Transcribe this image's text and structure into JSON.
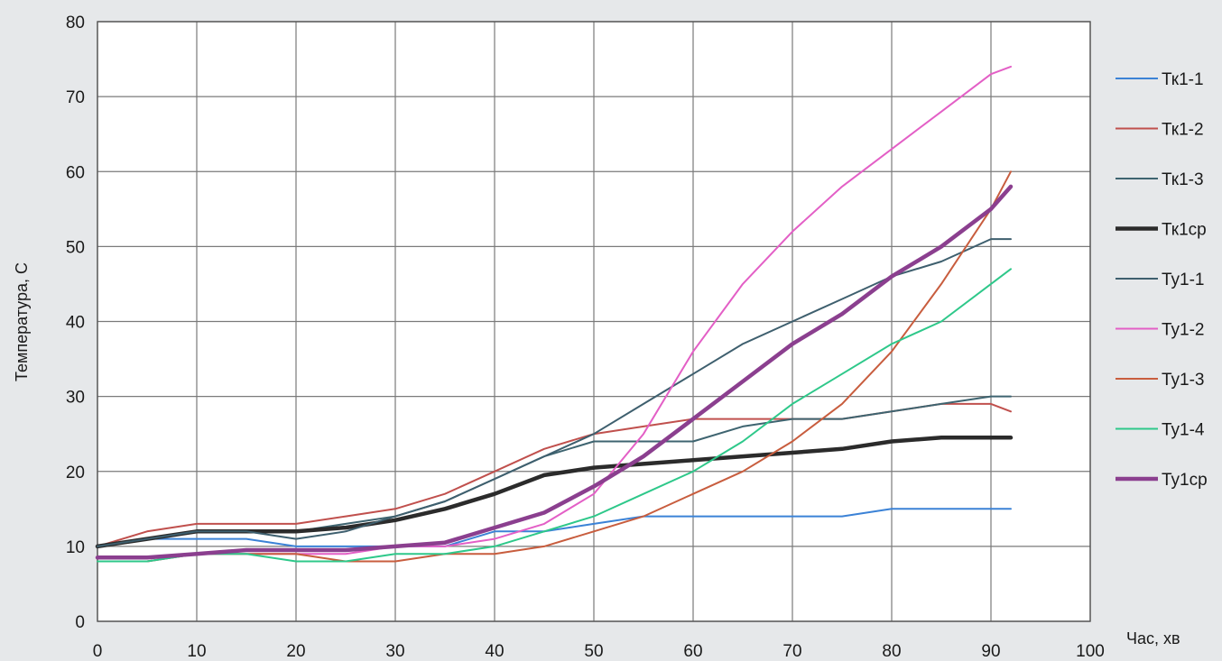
{
  "chart_data": {
    "type": "line",
    "title": "",
    "xlabel": "Час, хв",
    "ylabel": "Температура,  С",
    "xlim": [
      0,
      100
    ],
    "ylim": [
      0,
      80
    ],
    "x_ticks": [
      0,
      10,
      20,
      30,
      40,
      50,
      60,
      70,
      80,
      90,
      100
    ],
    "y_ticks": [
      0,
      10,
      20,
      30,
      40,
      50,
      60,
      70,
      80
    ],
    "grid": true,
    "legend_position": "right",
    "x": [
      0,
      5,
      10,
      15,
      20,
      25,
      30,
      35,
      40,
      45,
      50,
      55,
      60,
      65,
      70,
      75,
      80,
      85,
      90,
      92
    ],
    "series": [
      {
        "name": "Тк1-1",
        "color": "#3b82d6",
        "width": 2,
        "values": [
          10,
          11,
          11,
          11,
          10,
          10,
          10,
          10,
          12,
          12,
          13,
          14,
          14,
          14,
          14,
          14,
          15,
          15,
          15,
          15
        ]
      },
      {
        "name": "Тк1-2",
        "color": "#c0504d",
        "width": 2,
        "values": [
          10,
          12,
          13,
          13,
          13,
          14,
          15,
          17,
          20,
          23,
          25,
          26,
          27,
          27,
          27,
          27,
          28,
          29,
          29,
          28
        ]
      },
      {
        "name": "Тк1-3",
        "color": "#3e6470",
        "width": 2,
        "values": [
          10,
          11,
          12,
          12,
          12,
          13,
          14,
          16,
          19,
          22,
          24,
          24,
          24,
          26,
          27,
          27,
          28,
          29,
          30,
          30
        ]
      },
      {
        "name": "Тк1ср",
        "color": "#2b2b2b",
        "width": 4.5,
        "values": [
          10,
          11,
          12,
          12,
          12,
          12.5,
          13.5,
          15,
          17,
          19.5,
          20.5,
          21,
          21.5,
          22,
          22.5,
          23,
          24,
          24.5,
          24.5,
          24.5
        ]
      },
      {
        "name": "Ту1-1",
        "color": "#3e5f6e",
        "width": 2,
        "values": [
          10,
          11,
          12,
          12,
          11,
          12,
          14,
          16,
          19,
          22,
          25,
          29,
          33,
          37,
          40,
          43,
          46,
          48,
          51,
          51
        ]
      },
      {
        "name": "Ту1-2",
        "color": "#e35fc6",
        "width": 2,
        "values": [
          8,
          8,
          9,
          9,
          9,
          9,
          10,
          10,
          11,
          13,
          17,
          25,
          36,
          45,
          52,
          58,
          63,
          68,
          73,
          74
        ]
      },
      {
        "name": "Ту1-3",
        "color": "#c85d3e",
        "width": 2,
        "values": [
          8,
          8,
          9,
          9,
          9,
          8,
          8,
          9,
          9,
          10,
          12,
          14,
          17,
          20,
          24,
          29,
          36,
          45,
          55,
          60
        ]
      },
      {
        "name": "Ту1-4",
        "color": "#2ec88a",
        "width": 2,
        "values": [
          8,
          8,
          9,
          9,
          8,
          8,
          9,
          9,
          10,
          12,
          14,
          17,
          20,
          24,
          29,
          33,
          37,
          40,
          45,
          47
        ]
      },
      {
        "name": "Ту1ср",
        "color": "#8b3f8f",
        "width": 4.5,
        "values": [
          8.5,
          8.5,
          9,
          9.5,
          9.5,
          9.5,
          10,
          10.5,
          12.5,
          14.5,
          18,
          22,
          27,
          32,
          37,
          41,
          46,
          50,
          55,
          58
        ]
      }
    ]
  }
}
